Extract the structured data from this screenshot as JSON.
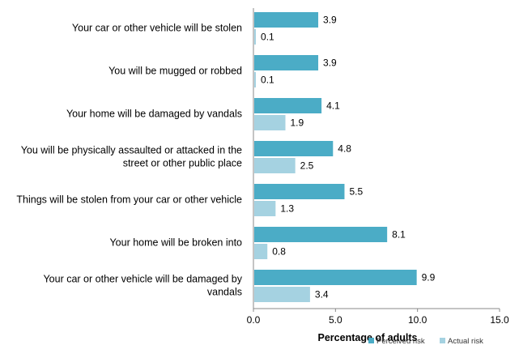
{
  "chart_data": {
    "type": "bar",
    "orientation": "horizontal",
    "categories": [
      [
        "Your car or other vehicle will be stolen"
      ],
      [
        "You will be mugged or robbed"
      ],
      [
        "Your home will be damaged by vandals"
      ],
      [
        "You will be physically assaulted or attacked in the",
        "street or other public place"
      ],
      [
        "Things will be stolen from your car or other vehicle"
      ],
      [
        "Your home will be broken into"
      ],
      [
        "Your car or other vehicle will be damaged by",
        "vandals"
      ]
    ],
    "series": [
      {
        "name": "Perceived risk",
        "color": "#4BACC6",
        "values": [
          3.9,
          3.9,
          4.1,
          4.8,
          5.5,
          8.1,
          9.9
        ]
      },
      {
        "name": "Actual risk",
        "color": "#A5D2E1",
        "values": [
          0.1,
          0.1,
          1.9,
          2.5,
          1.3,
          0.8,
          3.4
        ]
      }
    ],
    "value_labels": [
      [
        "3.9",
        "3.9",
        "4.1",
        "4.8",
        "5.5",
        "8.1",
        "9.9"
      ],
      [
        "0.1",
        "0.1",
        "1.9",
        "2.5",
        "1.3",
        "0.8",
        "3.4"
      ]
    ],
    "xlabel": "Percentage of adults",
    "xlim": [
      0,
      15
    ],
    "xticks": [
      0,
      5,
      10,
      15
    ],
    "xtick_labels": [
      "0.0",
      "5.0",
      "10.0",
      "15.0"
    ],
    "grid": false,
    "legend_position": "bottom-right"
  }
}
